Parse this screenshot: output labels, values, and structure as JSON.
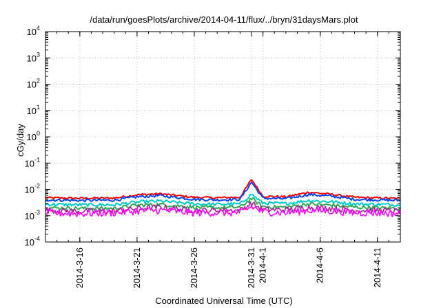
{
  "chart_data": {
    "type": "line",
    "title": "/data/run/goesPlots/archive/2014-04-11/flux/../bryn/31daysMars.plot",
    "xlabel": "Coordinated Universal Time (UTC)",
    "ylabel": "cGy/day",
    "yscale": "log",
    "ylim": [
      0.0001,
      10000
    ],
    "xlim": [
      "2014-03-13",
      "2014-04-13"
    ],
    "grid": true,
    "legend": "none",
    "x_ticks": [
      "2014-3-16",
      "2014-3-21",
      "2014-3-26",
      "2014-3-31",
      "2014-4-1",
      "2014-4-6",
      "2014-4-11"
    ],
    "y_ticks": [
      {
        "base": "10",
        "exp": "-4"
      },
      {
        "base": "10",
        "exp": "-3"
      },
      {
        "base": "10",
        "exp": "-2"
      },
      {
        "base": "10",
        "exp": "-1"
      },
      {
        "base": "10",
        "exp": "0"
      },
      {
        "base": "10",
        "exp": "1"
      },
      {
        "base": "10",
        "exp": "2"
      },
      {
        "base": "10",
        "exp": "3"
      },
      {
        "base": "10",
        "exp": "4"
      }
    ],
    "x": [
      "2014-03-13",
      "2014-03-16",
      "2014-03-19",
      "2014-03-21",
      "2014-03-23",
      "2014-03-26",
      "2014-03-28",
      "2014-03-30",
      "2014-03-31",
      "2014-04-01",
      "2014-04-03",
      "2014-04-05",
      "2014-04-07",
      "2014-04-09",
      "2014-04-11",
      "2014-04-13"
    ],
    "series": [
      {
        "color": "#ff0000",
        "values": [
          0.0048,
          0.0046,
          0.0047,
          0.0062,
          0.0068,
          0.005,
          0.0048,
          0.005,
          0.024,
          0.0055,
          0.0052,
          0.0078,
          0.0065,
          0.005,
          0.0047,
          0.0045
        ]
      },
      {
        "color": "#0044ff",
        "values": [
          0.004,
          0.0038,
          0.0039,
          0.0052,
          0.0058,
          0.0042,
          0.004,
          0.0042,
          0.019,
          0.0046,
          0.0044,
          0.0064,
          0.0055,
          0.0042,
          0.004,
          0.0038
        ]
      },
      {
        "color": "#00cccc",
        "values": [
          0.0027,
          0.0026,
          0.0026,
          0.0033,
          0.0036,
          0.0028,
          0.0027,
          0.0028,
          0.0065,
          0.003,
          0.0029,
          0.0038,
          0.0034,
          0.0028,
          0.0027,
          0.0026
        ]
      },
      {
        "color": "#33aa55",
        "values": [
          0.002,
          0.0019,
          0.0019,
          0.0025,
          0.0027,
          0.0021,
          0.002,
          0.0021,
          0.0045,
          0.0022,
          0.0021,
          0.0028,
          0.0025,
          0.0021,
          0.002,
          0.0019
        ]
      },
      {
        "color": "#aa2299",
        "values": [
          0.0016,
          0.0015,
          0.0015,
          0.0019,
          0.0021,
          0.0016,
          0.0016,
          0.0016,
          0.003,
          0.0017,
          0.0017,
          0.0021,
          0.0019,
          0.0016,
          0.0016,
          0.0015
        ]
      },
      {
        "color": "#ff00ff",
        "values": [
          0.0013,
          0.0012,
          0.0013,
          0.0015,
          0.0016,
          0.0013,
          0.0013,
          0.0013,
          0.0022,
          0.0014,
          0.0013,
          0.0016,
          0.0015,
          0.0013,
          0.0013,
          0.0012
        ]
      }
    ]
  }
}
